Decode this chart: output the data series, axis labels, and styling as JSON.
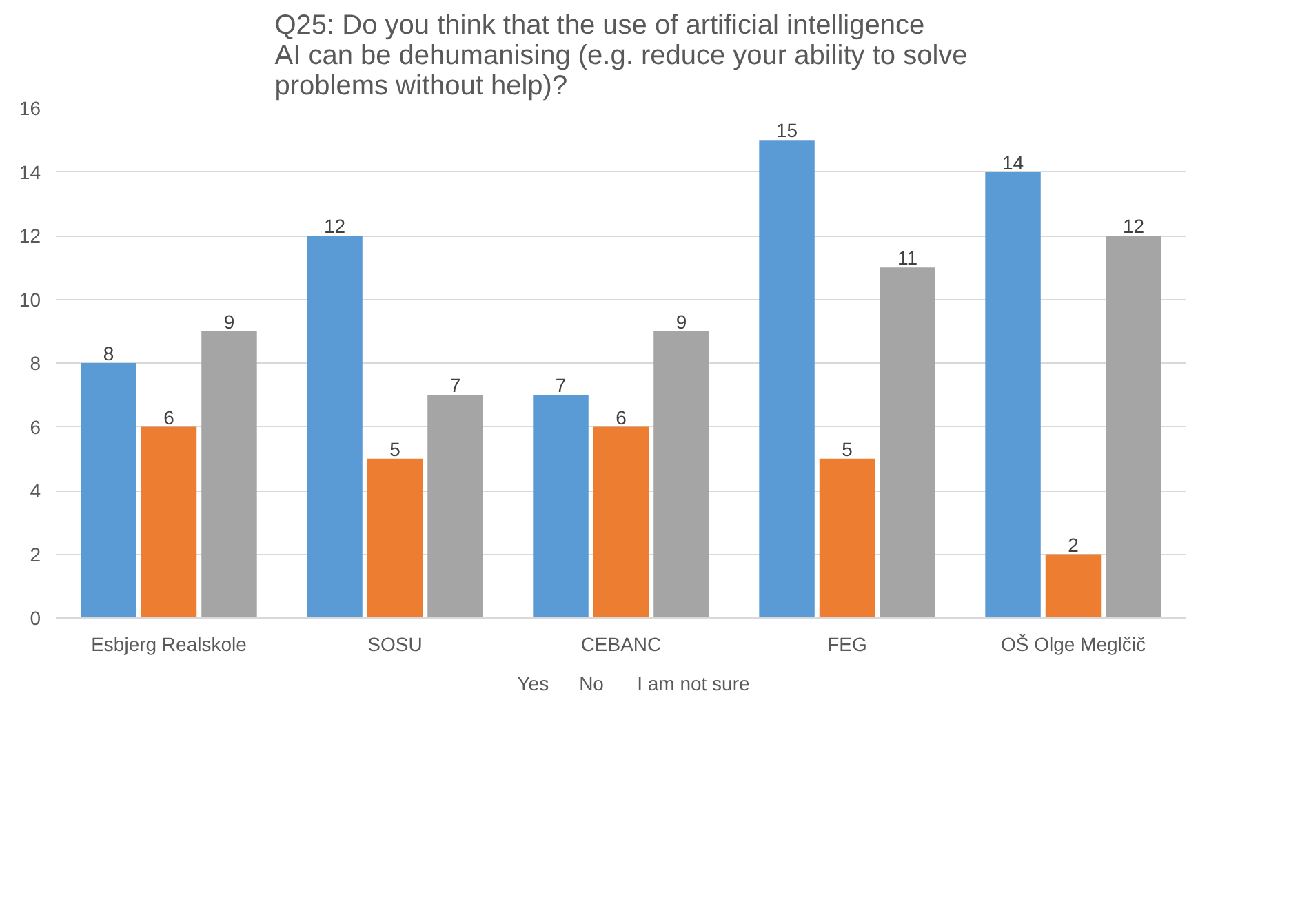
{
  "chart_data": {
    "type": "bar",
    "title": "Q25: Do you think that the use of artificial intelligence AI can be dehumanising (e.g. reduce your ability to solve problems without help)?",
    "categories": [
      "Esbjerg Realskole",
      "SOSU",
      "CEBANC",
      "FEG",
      "OŠ Olge Meglčič"
    ],
    "series": [
      {
        "name": "Yes",
        "color": "#5b9bd5",
        "values": [
          8,
          12,
          7,
          15,
          14
        ]
      },
      {
        "name": "No",
        "color": "#ed7d31",
        "values": [
          6,
          5,
          6,
          5,
          2
        ]
      },
      {
        "name": "I am not sure",
        "color": "#a5a5a5",
        "values": [
          9,
          7,
          9,
          11,
          12
        ]
      }
    ],
    "ylim": [
      0,
      16
    ],
    "yticks": [
      0,
      2,
      4,
      6,
      8,
      10,
      12,
      14,
      16
    ],
    "grid": "y",
    "legend": "bottom",
    "data_labels": true
  }
}
